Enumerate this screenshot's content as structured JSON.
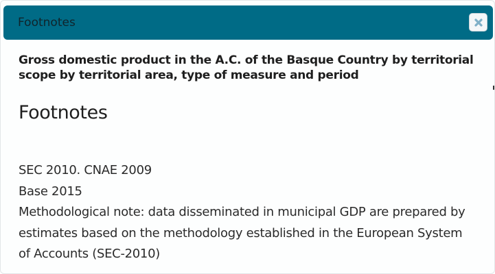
{
  "dialog": {
    "title": "Footnotes",
    "close_icon": "close-x-icon"
  },
  "content": {
    "table_title": "Gross domestic product in the A.C. of the Basque Country by territorial scope by territorial area, type of measure and period",
    "section_heading": "Footnotes",
    "notes": [
      "SEC 2010. CNAE 2009",
      "Base 2015",
      "Methodological note: data disseminated in municipal GDP are prepared by",
      "estimates based on the methodology established in the European System",
      "of Accounts (SEC-2010)"
    ]
  },
  "colors": {
    "titlebar": "#006b86",
    "close_icon": "#7fb0c8"
  }
}
